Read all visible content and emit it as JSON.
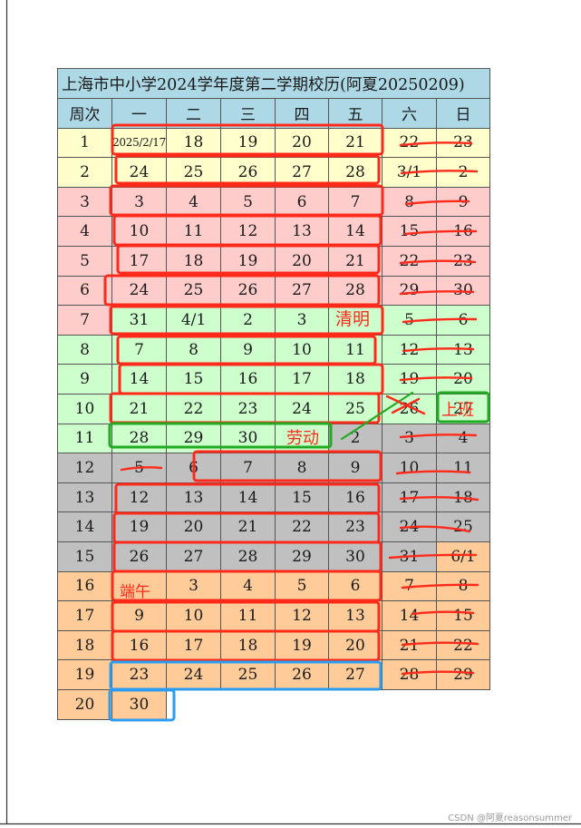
{
  "calendar": {
    "title": "上海市中小学2024学年度第二学期校历(阿夏20250209)",
    "headers": [
      "周次",
      "一",
      "二",
      "三",
      "四",
      "五",
      "六",
      "日"
    ],
    "rows": [
      {
        "week": "1",
        "days": [
          "2025/2/17",
          "18",
          "19",
          "20",
          "21",
          "22",
          "23"
        ]
      },
      {
        "week": "2",
        "days": [
          "24",
          "25",
          "26",
          "27",
          "28",
          "3/1",
          "2"
        ]
      },
      {
        "week": "3",
        "days": [
          "3",
          "4",
          "5",
          "6",
          "7",
          "8",
          "9"
        ]
      },
      {
        "week": "4",
        "days": [
          "10",
          "11",
          "12",
          "13",
          "14",
          "15",
          "16"
        ]
      },
      {
        "week": "5",
        "days": [
          "17",
          "18",
          "19",
          "20",
          "21",
          "22",
          "23"
        ]
      },
      {
        "week": "6",
        "days": [
          "24",
          "25",
          "26",
          "27",
          "28",
          "29",
          "30"
        ]
      },
      {
        "week": "7",
        "days": [
          "31",
          "4/1",
          "2",
          "3",
          "",
          "5",
          "6"
        ]
      },
      {
        "week": "8",
        "days": [
          "7",
          "8",
          "9",
          "10",
          "11",
          "12",
          "13"
        ]
      },
      {
        "week": "9",
        "days": [
          "14",
          "15",
          "16",
          "17",
          "18",
          "19",
          "20"
        ]
      },
      {
        "week": "10",
        "days": [
          "21",
          "22",
          "23",
          "24",
          "25",
          "26",
          "27"
        ]
      },
      {
        "week": "11",
        "days": [
          "28",
          "29",
          "30",
          "",
          "2",
          "3",
          "4"
        ]
      },
      {
        "week": "12",
        "days": [
          "5",
          "6",
          "7",
          "8",
          "9",
          "10",
          "11"
        ]
      },
      {
        "week": "13",
        "days": [
          "12",
          "13",
          "14",
          "15",
          "16",
          "17",
          "18"
        ]
      },
      {
        "week": "14",
        "days": [
          "19",
          "20",
          "21",
          "22",
          "23",
          "24",
          "25"
        ]
      },
      {
        "week": "15",
        "days": [
          "26",
          "27",
          "28",
          "29",
          "30",
          "31",
          "6/1"
        ]
      },
      {
        "week": "16",
        "days": [
          "",
          "3",
          "4",
          "5",
          "6",
          "7",
          "8"
        ]
      },
      {
        "week": "17",
        "days": [
          "9",
          "10",
          "11",
          "12",
          "13",
          "14",
          "15"
        ]
      },
      {
        "week": "18",
        "days": [
          "16",
          "17",
          "18",
          "19",
          "20",
          "21",
          "22"
        ]
      },
      {
        "week": "19",
        "days": [
          "23",
          "24",
          "25",
          "26",
          "27",
          "28",
          "29"
        ]
      },
      {
        "week": "20",
        "days": [
          "30"
        ]
      }
    ]
  },
  "annotations": {
    "qingming": "清明",
    "laodong": "劳动",
    "duanwu": "端午",
    "shangban": "上班"
  },
  "colors": {
    "header_blue": "#add8e6",
    "feb_yellow": "#ffffcc",
    "mar_pink": "#ffcccc",
    "apr_green": "#ccffcc",
    "may_gray": "#c0c0c0",
    "jun_orange": "#ffcc99",
    "pen_red": "#ff2a1a",
    "pen_green": "#22aa22",
    "pen_blue": "#2c9cf0"
  },
  "footer": {
    "credit": "CSDN @阿夏reasonsummer"
  }
}
